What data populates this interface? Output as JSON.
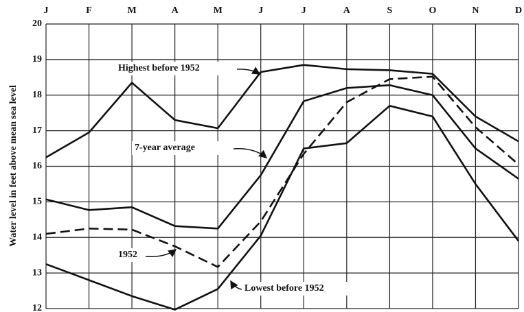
{
  "chart_data": {
    "type": "line",
    "y_label": "Water level in feet above mean sea level",
    "categories": [
      "J",
      "F",
      "M",
      "A",
      "M",
      "J",
      "J",
      "A",
      "S",
      "O",
      "N",
      "D"
    ],
    "series": [
      {
        "name": "Highest before 1952",
        "color": "#111111",
        "style": "solid",
        "values": [
          16.25,
          16.95,
          18.35,
          17.3,
          17.07,
          18.65,
          18.85,
          18.73,
          18.7,
          18.6,
          17.4,
          16.7
        ]
      },
      {
        "name": "7-year average",
        "color": "#111111",
        "style": "solid",
        "values": [
          15.07,
          14.77,
          14.85,
          14.32,
          14.25,
          15.75,
          17.83,
          18.2,
          18.28,
          18.0,
          16.5,
          15.65
        ]
      },
      {
        "name": "1952",
        "color": "#111111",
        "style": "dashed",
        "values": [
          14.1,
          14.25,
          14.22,
          13.75,
          13.17,
          14.45,
          16.35,
          17.8,
          18.45,
          18.52,
          17.1,
          16.05
        ]
      },
      {
        "name": "Lowest before 1952",
        "color": "#111111",
        "style": "solid",
        "values": [
          13.25,
          12.8,
          12.35,
          11.97,
          12.55,
          14.05,
          16.5,
          16.65,
          17.7,
          17.4,
          15.5,
          13.9
        ]
      }
    ],
    "ylim": [
      12,
      20
    ],
    "yticks": [
      12,
      13,
      14,
      15,
      16,
      17,
      18,
      19,
      20
    ],
    "grid": true
  }
}
